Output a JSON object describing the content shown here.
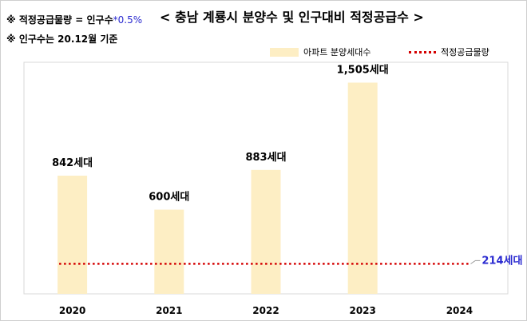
{
  "notes": {
    "formula_prefix": "※ 적정공급물량 = 인구수",
    "formula_rate": "*0.5%",
    "population_basis": "※ 인구수는 20.12월 기준"
  },
  "title": "< 충남 계룡시 분양수 및 인구대비 적정공급수 >",
  "colors": {
    "bar": "#fdeec4",
    "line": "#d40000",
    "line_label": "#2a2ad0"
  },
  "chart_data": {
    "type": "bar",
    "categories": [
      "2020",
      "2021",
      "2022",
      "2023",
      "2024"
    ],
    "series": [
      {
        "name": "아파트 분양세대수",
        "type": "bar",
        "values": [
          842,
          600,
          883,
          1505,
          null
        ],
        "labels": [
          "842세대",
          "600세대",
          "883세대",
          "1,505세대",
          ""
        ]
      },
      {
        "name": "적정공급물량",
        "type": "line",
        "style": "dotted",
        "value": 214,
        "label": "214세대"
      }
    ],
    "ylim": [
      0,
      1650
    ],
    "legend": "top-right",
    "grid": false
  }
}
